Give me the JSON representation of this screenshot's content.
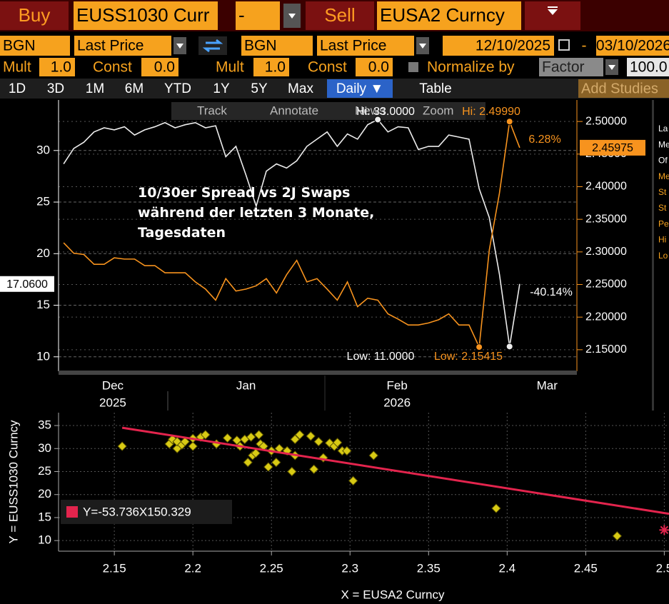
{
  "toolbar": {
    "buy": "Buy",
    "security_1": "EUSS1030 Curr",
    "operator": "-",
    "sell": "Sell",
    "security_2": "EUSA2 Curncy"
  },
  "settings": {
    "source_1": "BGN",
    "field_1": "Last Price",
    "source_2": "BGN",
    "field_2": "Last Price",
    "start_date": "12/10/2025",
    "date_separator": "-",
    "end_date": "03/10/2026",
    "mult_1_label": "Mult",
    "mult_1": "1.0",
    "const_1_label": "Const",
    "const_1": "0.0",
    "mult_2_label": "Mult",
    "mult_2": "1.0",
    "const_2_label": "Const",
    "const_2": "0.0",
    "normalize_label": "Normalize by",
    "normalize_mode": "Factor",
    "normalize_value": "100.0"
  },
  "tabs": [
    "1D",
    "3D",
    "1M",
    "6M",
    "YTD",
    "1Y",
    "5Y",
    "Max",
    "Daily ▼",
    "Table"
  ],
  "add_studies": "Add Studies",
  "chart_tools": [
    "Track",
    "Annotate",
    "News",
    "Zoom"
  ],
  "side_panel": [
    "La",
    "Me",
    "Of",
    "Me",
    "St",
    "St",
    "Pe",
    "Hi",
    "Lo"
  ],
  "chart_data": [
    {
      "type": "line",
      "title": "10/30er Spread vs 2J Swaps\nwährend der letzten 3 Monate,\nTagesdaten",
      "categories": [
        null,
        null,
        null,
        null,
        null,
        null,
        null,
        null,
        null,
        null,
        null,
        null,
        null,
        null,
        null,
        null,
        null,
        null,
        null,
        null,
        null,
        null,
        null,
        null,
        null,
        null,
        null,
        null,
        null,
        null,
        null,
        null,
        null,
        null,
        null,
        null,
        null,
        null,
        null,
        null,
        null,
        null,
        null,
        null,
        null,
        null
      ],
      "xticks": [
        {
          "value": 4.85,
          "label": "Dec"
        },
        {
          "value": 18,
          "label": "Jan"
        },
        {
          "value": 32.9,
          "label": "Feb"
        },
        {
          "value": 47.7,
          "label": "Mar"
        }
      ],
      "year_labels": [
        {
          "value": 4.85,
          "label": "2025"
        },
        {
          "value": 32.9,
          "label": "2026"
        }
      ],
      "series": [
        {
          "color": "#ececec",
          "values": [
            28.7,
            30.2,
            30.8,
            31.8,
            32.2,
            32.0,
            32.3,
            31.5,
            32.0,
            32.3,
            32.7,
            32.2,
            32.5,
            32.7,
            32.2,
            32.4,
            29.4,
            30.4,
            27.6,
            24.6,
            28.0,
            28.7,
            28.3,
            29.0,
            30.4,
            31.1,
            31.8,
            30.4,
            31.6,
            31.1,
            32.5,
            33.0,
            31.8,
            32.3,
            32.2,
            30.1,
            30.4,
            30.4,
            31.5,
            31.3,
            31.1,
            26.3,
            23.5,
            18.0,
            11.0,
            17.06
          ]
        },
        {
          "color": "#f7931e",
          "axis": "y2",
          "values": [
            2.314,
            2.298,
            2.296,
            2.281,
            2.281,
            2.291,
            2.289,
            2.289,
            2.279,
            2.279,
            2.268,
            2.268,
            2.268,
            2.254,
            2.243,
            2.226,
            2.259,
            2.24,
            2.243,
            2.248,
            2.259,
            2.237,
            2.265,
            2.287,
            2.254,
            2.259,
            2.243,
            2.226,
            2.254,
            2.216,
            2.229,
            2.226,
            2.205,
            2.197,
            2.188,
            2.188,
            2.191,
            2.196,
            2.205,
            2.188,
            2.188,
            2.15415,
            2.303,
            2.39,
            2.4999,
            2.45975
          ]
        }
      ],
      "ylim": [
        8.6,
        34.9
      ],
      "yticks": [
        10,
        15,
        20,
        25,
        30
      ],
      "y2lim": [
        2.117,
        2.533
      ],
      "y2ticks": [
        {
          "value": 2.15,
          "label": "2.15000"
        },
        {
          "value": 2.2,
          "label": "2.20000"
        },
        {
          "value": 2.25,
          "label": "2.25000"
        },
        {
          "value": 2.3,
          "label": "2.30000"
        },
        {
          "value": 2.35,
          "label": "2.35000"
        },
        {
          "value": 2.4,
          "label": "2.40000"
        },
        {
          "value": 2.45,
          "label": "2.45000"
        },
        {
          "value": 2.5,
          "label": "2.50000"
        }
      ],
      "last_labels": [
        {
          "value": 17.06,
          "label": "17.0600"
        },
        {
          "value": 2.45975,
          "label": "2.45975"
        }
      ],
      "annotations": [
        "6.28%",
        "-40.14%",
        "Low: 11.0000",
        "Low: 2.15415",
        "Hi: 33.0000",
        "Hi: 2.49990"
      ],
      "grid": true
    },
    {
      "type": "scatter",
      "x": [
        2.155,
        2.185,
        2.187,
        2.19,
        2.19,
        2.193,
        2.195,
        2.2,
        2.2,
        2.205,
        2.208,
        2.215,
        2.222,
        2.228,
        2.23,
        2.233,
        2.235,
        2.237,
        2.238,
        2.24,
        2.242,
        2.243,
        2.245,
        2.248,
        2.25,
        2.253,
        2.255,
        2.26,
        2.263,
        2.265,
        2.265,
        2.268,
        2.275,
        2.277,
        2.28,
        2.283,
        2.287,
        2.29,
        2.292,
        2.295,
        2.298,
        2.302,
        2.315,
        2.393,
        2.47
      ],
      "values": [
        30.5,
        31,
        32,
        30,
        31.5,
        30.8,
        31.5,
        30.5,
        32.2,
        32.5,
        33,
        31,
        32.3,
        31.8,
        30.5,
        32,
        27,
        32.5,
        28.5,
        29,
        33,
        31,
        30.5,
        26,
        29.5,
        27,
        30,
        29.5,
        25,
        28.5,
        32,
        33,
        32.7,
        25.5,
        31.5,
        28,
        31.2,
        30.5,
        31.3,
        29.5,
        29.5,
        23,
        28.5,
        17,
        11
      ],
      "color": "#d8ca14",
      "xlim": [
        2.1145,
        2.503
      ],
      "xticks": [
        2.15,
        2.2,
        2.25,
        2.3,
        2.35,
        2.4,
        2.45,
        2.5
      ],
      "ylim": [
        7.7,
        37.8
      ],
      "yticks": [
        10,
        15,
        20,
        25,
        30,
        35
      ],
      "xlabel": "X = EUSA2 Curncy",
      "ylabel": "Y = EUSS1030 Curncy",
      "regression": {
        "slope": -53.736,
        "intercept": 150.329,
        "label": "Y=-53.736X150.329",
        "color": "#e3244d"
      },
      "current": {
        "x": 2.5,
        "y": 12.3,
        "color": "#e3244d"
      },
      "grid": true
    }
  ]
}
